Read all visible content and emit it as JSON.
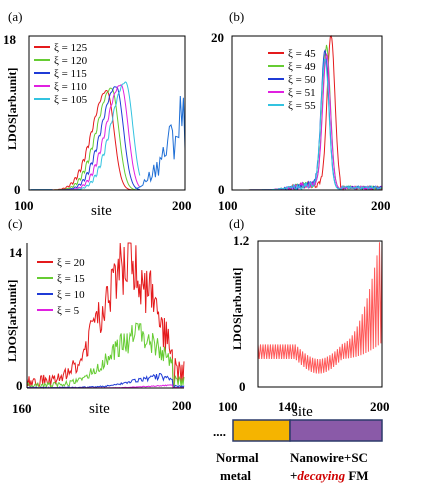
{
  "chart_data": [
    {
      "panel": "(a)",
      "type": "line",
      "xlabel": "site",
      "ylabel": "LDOS[arb.unit]",
      "xlim": [
        100,
        200
      ],
      "ylim": [
        0,
        18
      ],
      "xtick_labels": [
        "100",
        "200"
      ],
      "ytick_labels": [
        "0",
        "18"
      ],
      "legend_position": "top-left",
      "legend": [
        "ξL = 125",
        "ξL = 120",
        "ξL = 115",
        "ξL = 110",
        "ξL = 105"
      ],
      "series": [
        {
          "name": "ξL = 125",
          "color": "#e41a1c",
          "peak_site": 150,
          "peak_value": 11.5
        },
        {
          "name": "ξL = 120",
          "color": "#66cc33",
          "peak_site": 153,
          "peak_value": 11.8
        },
        {
          "name": "ξL = 115",
          "color": "#1f3bd6",
          "peak_site": 156,
          "peak_value": 12.0
        },
        {
          "name": "ξL = 110",
          "color": "#e020e0",
          "peak_site": 159,
          "peak_value": 12.2
        },
        {
          "name": "ξL = 105",
          "color": "#33c3e0",
          "peak_site": 162,
          "peak_value": 12.5
        }
      ],
      "tail": {
        "from_site": 168,
        "to_site": 200,
        "max_value": 13.5
      }
    },
    {
      "panel": "(b)",
      "type": "line",
      "xlabel": "site",
      "ylabel": "",
      "xlim": [
        100,
        200
      ],
      "ylim": [
        0,
        20
      ],
      "xtick_labels": [
        "100",
        "200"
      ],
      "ytick_labels": [
        "0",
        "20"
      ],
      "legend_position": "top-right",
      "legend": [
        "ξL = 45",
        "ξL = 49",
        "ξL = 50",
        "ξL = 51",
        "ξL = 55"
      ],
      "series": [
        {
          "name": "ξL = 45",
          "color": "#e41a1c",
          "peak_site": 166,
          "peak_value": 19.5
        },
        {
          "name": "ξL = 49",
          "color": "#66cc33",
          "peak_site": 163,
          "peak_value": 18.0
        },
        {
          "name": "ξL = 50",
          "color": "#1f3bd6",
          "peak_site": 162,
          "peak_value": 17.5
        },
        {
          "name": "ξL = 51",
          "color": "#e020e0",
          "peak_site": 163,
          "peak_value": 17.0
        },
        {
          "name": "ξL = 55",
          "color": "#33c3e0",
          "peak_site": 162,
          "peak_value": 16.5
        }
      ]
    },
    {
      "panel": "(c)",
      "type": "line",
      "xlabel": "site",
      "ylabel": "LDOS[arb.unit]",
      "xlim": [
        160,
        200
      ],
      "ylim": [
        0,
        14
      ],
      "xtick_labels": [
        "160",
        "200"
      ],
      "ytick_labels": [
        "0",
        "14"
      ],
      "legend_position": "top-left",
      "legend": [
        "ξL = 20",
        "ξL = 15",
        "ξL = 10",
        "ξL = 5"
      ],
      "series": [
        {
          "name": "ξL = 20",
          "color": "#e41a1c",
          "peak_site": 186,
          "peak_value": 14.5
        },
        {
          "name": "ξL = 15",
          "color": "#66cc33",
          "peak_site": 188,
          "peak_value": 6.0
        },
        {
          "name": "ξL = 10",
          "color": "#1f3bd6",
          "peak_site": 194,
          "peak_value": 1.3
        },
        {
          "name": "ξL = 5",
          "color": "#e020e0",
          "peak_site": 198,
          "peak_value": 0.3
        }
      ]
    },
    {
      "panel": "(d)",
      "type": "line",
      "xlabel": "site",
      "ylabel": "LDOS[arb.unit]",
      "xlim": [
        100,
        200
      ],
      "ylim": [
        0,
        1.2
      ],
      "xtick_labels": [
        "100",
        "140",
        "200"
      ],
      "ytick_labels": [
        "0",
        "1.2"
      ],
      "series": [
        {
          "color": "#ff5a5a",
          "baseline_value": 0.29,
          "end_value": 1.2
        }
      ]
    }
  ],
  "schematic": {
    "dots": "....",
    "normal_metal_label_line1": "Normal",
    "normal_metal_label_line2": "metal",
    "nanowire_label_line1": "Nanowire+SC",
    "nanowire_label_line2_prefix": "+",
    "nanowire_label_line2_emph": "decaying",
    "nanowire_label_line2_suffix": " FM",
    "normal_metal_color": "#f5b400",
    "nanowire_color": "#8a5aa8"
  }
}
